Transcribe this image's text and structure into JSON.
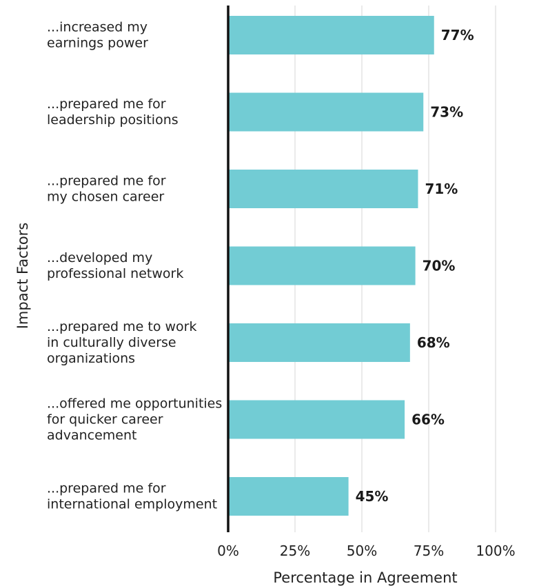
{
  "chart_data": {
    "type": "bar",
    "orientation": "horizontal",
    "title": "",
    "xlabel": "Percentage in Agreement",
    "ylabel": "Impact Factors",
    "xlim": [
      0,
      100
    ],
    "grid": true,
    "bar_color": "#72ccd4",
    "categories": [
      [
        "...increased my",
        "earnings power"
      ],
      [
        "...prepared me for",
        "leadership positions"
      ],
      [
        "...prepared me for",
        "my chosen career"
      ],
      [
        "...developed my",
        "professional network"
      ],
      [
        "...prepared me to work",
        "in culturally diverse",
        "organizations"
      ],
      [
        "...offered me opportunities",
        "for quicker career",
        "advancement"
      ],
      [
        "...prepared me for",
        "international employment"
      ]
    ],
    "values": [
      77,
      73,
      71,
      70,
      68,
      66,
      45
    ],
    "value_labels": [
      "77%",
      "73%",
      "71%",
      "70%",
      "68%",
      "66%",
      "45%"
    ],
    "ticks": [
      0,
      25,
      50,
      75,
      100
    ],
    "tick_labels": [
      "0%",
      "25%",
      "50%",
      "75%",
      "100%"
    ]
  }
}
